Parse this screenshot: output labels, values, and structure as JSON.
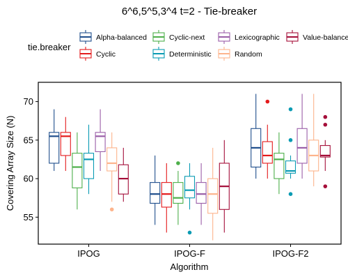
{
  "chart_data": {
    "type": "boxplot",
    "title": "6^6,5^5,3^4 t=2 - Tie-breaker",
    "xlabel": "Algorithm",
    "ylabel": "Covering Array Size (N)",
    "ylim": [
      51.5,
      72.5
    ],
    "yticks": [
      55,
      60,
      65,
      70
    ],
    "categories": [
      "IPOG",
      "IPOG-F",
      "IPOG-F2"
    ],
    "legend": {
      "title": "tie.breaker",
      "position": "top"
    },
    "grid": false,
    "series": [
      {
        "name": "Alpha-balanced",
        "color": "#1f4e8c",
        "boxes": [
          {
            "min": 61,
            "q1": 62,
            "median": 65.5,
            "q3": 66,
            "max": 69,
            "outliers": []
          },
          {
            "min": 54,
            "q1": 56.8,
            "median": 58,
            "q3": 59.5,
            "max": 63,
            "outliers": []
          },
          {
            "min": 60,
            "q1": 61.5,
            "median": 64,
            "q3": 66.5,
            "max": 71,
            "outliers": []
          }
        ]
      },
      {
        "name": "Cyclic",
        "color": "#e41a1c",
        "boxes": [
          {
            "min": 61,
            "q1": 63,
            "median": 65.5,
            "q3": 66,
            "max": 68,
            "outliers": []
          },
          {
            "min": 53,
            "q1": 56.3,
            "median": 58,
            "q3": 59.5,
            "max": 62,
            "outliers": []
          },
          {
            "min": 60,
            "q1": 62,
            "median": 63,
            "q3": 64.8,
            "max": 67,
            "outliers": [
              70
            ]
          }
        ]
      },
      {
        "name": "Cyclic-next",
        "color": "#4daf4a",
        "boxes": [
          {
            "min": 56,
            "q1": 58.8,
            "median": 61.5,
            "q3": 63.3,
            "max": 66,
            "outliers": []
          },
          {
            "min": 54,
            "q1": 56.8,
            "median": 57.5,
            "q3": 59.5,
            "max": 61,
            "outliers": [
              62
            ]
          },
          {
            "min": 58,
            "q1": 60,
            "median": 62.5,
            "q3": 63.3,
            "max": 66,
            "outliers": []
          }
        ]
      },
      {
        "name": "Deterministic",
        "color": "#0a9bb3",
        "boxes": [
          {
            "min": 58,
            "q1": 60,
            "median": 62.5,
            "q3": 63.3,
            "max": 67,
            "outliers": []
          },
          {
            "min": 56,
            "q1": 57.5,
            "median": 58.5,
            "q3": 60.3,
            "max": 62,
            "outliers": [
              53
            ]
          },
          {
            "min": 60,
            "q1": 60.7,
            "median": 61,
            "q3": 62.3,
            "max": 63,
            "outliers": [
              69,
              65,
              58
            ]
          }
        ]
      },
      {
        "name": "Lexicographic",
        "color": "#9a5ea8",
        "boxes": [
          {
            "min": 61,
            "q1": 63.5,
            "median": 65.5,
            "q3": 66,
            "max": 69,
            "outliers": []
          },
          {
            "min": 54,
            "q1": 56.8,
            "median": 58,
            "q3": 59.5,
            "max": 62,
            "outliers": []
          },
          {
            "min": 60,
            "q1": 62,
            "median": 64,
            "q3": 66.5,
            "max": 71,
            "outliers": []
          }
        ]
      },
      {
        "name": "Random",
        "color": "#fdb48c",
        "boxes": [
          {
            "min": 57,
            "q1": 61,
            "median": 62,
            "q3": 64,
            "max": 66,
            "outliers": [
              56
            ]
          },
          {
            "min": 52,
            "q1": 55.5,
            "median": 58,
            "q3": 60,
            "max": 64,
            "outliers": []
          },
          {
            "min": 59,
            "q1": 61,
            "median": 63,
            "q3": 65,
            "max": 71,
            "outliers": []
          }
        ]
      },
      {
        "name": "Value-balanced",
        "color": "#a50f3a",
        "boxes": [
          {
            "min": 57,
            "q1": 58,
            "median": 60,
            "q3": 61.8,
            "max": 64,
            "outliers": []
          },
          {
            "min": 53,
            "q1": 56,
            "median": 59,
            "q3": 62,
            "max": 65,
            "outliers": []
          },
          {
            "min": 61,
            "q1": 62.8,
            "median": 63,
            "q3": 64.3,
            "max": 65,
            "outliers": [
              68,
              67,
              59
            ]
          }
        ]
      }
    ]
  }
}
